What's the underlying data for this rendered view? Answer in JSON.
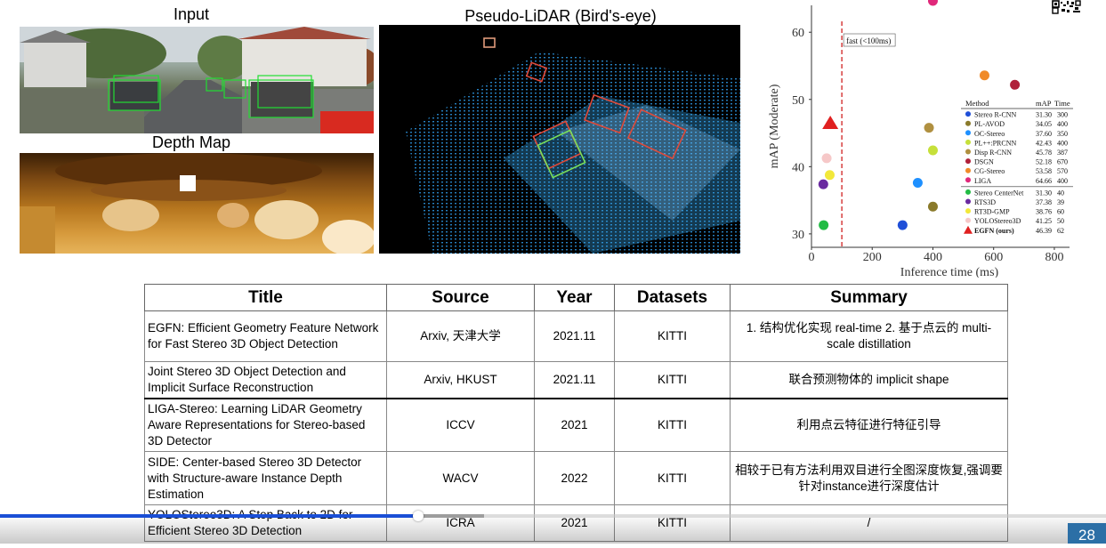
{
  "figure": {
    "input_label": "Input",
    "depth_label": "Depth Map",
    "lidar_label": "Pseudo-LiDAR (Bird's-eye)"
  },
  "chart_data": {
    "type": "scatter",
    "xlabel": "Inference time (ms)",
    "ylabel": "mAP (Moderate)",
    "xlim": [
      0,
      850
    ],
    "ylim": [
      28,
      64
    ],
    "xticks": [
      "0",
      "200",
      "400",
      "600",
      "800"
    ],
    "yticks": [
      "30",
      "40",
      "50",
      "60"
    ],
    "threshold": {
      "x": 100,
      "label": "fast (<100ms)"
    },
    "legend_headers": [
      "Method",
      "mAP",
      "Time"
    ],
    "series": [
      {
        "name": "Stereo R-CNN",
        "map": 31.3,
        "time": 300,
        "map_label": "31.30",
        "time_label": "300",
        "color": "#1f4fd8",
        "marker": "circle"
      },
      {
        "name": "PL-AVOD",
        "map": 34.05,
        "time": 400,
        "map_label": "34.05",
        "time_label": "400",
        "color": "#8a7a2a",
        "marker": "circle"
      },
      {
        "name": "OC-Stereo",
        "map": 37.6,
        "time": 350,
        "map_label": "37.60",
        "time_label": "350",
        "color": "#1e90ff",
        "marker": "circle"
      },
      {
        "name": "PL++:PRCNN",
        "map": 42.43,
        "time": 400,
        "map_label": "42.43",
        "time_label": "400",
        "color": "#c6e03a",
        "marker": "circle"
      },
      {
        "name": "Disp R-CNN",
        "map": 45.78,
        "time": 387,
        "map_label": "45.78",
        "time_label": "387",
        "color": "#b09040",
        "marker": "circle"
      },
      {
        "name": "DSGN",
        "map": 52.18,
        "time": 670,
        "map_label": "52.18",
        "time_label": "670",
        "color": "#b0203a",
        "marker": "circle"
      },
      {
        "name": "CG-Stereo",
        "map": 53.58,
        "time": 570,
        "map_label": "53.58",
        "time_label": "570",
        "color": "#f08a28",
        "marker": "circle"
      },
      {
        "name": "LIGA",
        "map": 64.66,
        "time": 400,
        "map_label": "64.66",
        "time_label": "400",
        "color": "#e0287a",
        "marker": "circle"
      },
      {
        "name": "Stereo CenterNet",
        "map": 31.3,
        "time": 40,
        "map_label": "31.30",
        "time_label": "40",
        "color": "#22bb44",
        "marker": "circle"
      },
      {
        "name": "RTS3D",
        "map": 37.38,
        "time": 39,
        "map_label": "37.38",
        "time_label": "39",
        "color": "#6a2aa0",
        "marker": "circle"
      },
      {
        "name": "RT3D-GMP",
        "map": 38.76,
        "time": 60,
        "map_label": "38.76",
        "time_label": "60",
        "color": "#f2e83a",
        "marker": "circle"
      },
      {
        "name": "YOLOStereo3D",
        "map": 41.25,
        "time": 50,
        "map_label": "41.25",
        "time_label": "50",
        "color": "#f6c8c8",
        "marker": "circle"
      },
      {
        "name": "EGFN (ours)",
        "map": 46.39,
        "time": 62,
        "map_label": "46.39",
        "time_label": "62",
        "color": "#e02020",
        "marker": "triangle"
      }
    ]
  },
  "table": {
    "headers": [
      "Title",
      "Source",
      "Year",
      "Datasets",
      "Summary"
    ],
    "rows": [
      {
        "title": "EGFN: Efficient Geometry Feature Network for Fast Stereo 3D Object Detection",
        "source": "Arxiv, 天津大学",
        "year": "2021.11",
        "datasets": "KITTI",
        "summary": "1. 结构优化实现 real-time 2. 基于点云的 multi-scale distillation"
      },
      {
        "title": "Joint Stereo 3D Object Detection and Implicit Surface Reconstruction",
        "source": "Arxiv, HKUST",
        "year": "2021.11",
        "datasets": "KITTI",
        "summary": "联合预测物体的 implicit shape"
      },
      {
        "title": "LIGA-Stereo: Learning LiDAR Geometry Aware Representations for Stereo-based 3D Detector",
        "source": "ICCV",
        "year": "2021",
        "datasets": "KITTI",
        "summary": "利用点云特征进行特征引导"
      },
      {
        "title": "SIDE: Center-based Stereo 3D Detector with Structure-aware Instance Depth Estimation",
        "source": "WACV",
        "year": "2022",
        "datasets": "KITTI",
        "summary": "相较于已有方法利用双目进行全图深度恢复,强调要针对instance进行深度估计"
      },
      {
        "title": "YOLOStereo3D: A Step Back to 2D for Efficient Stereo 3D Detection",
        "source": "ICRA",
        "year": "2021",
        "datasets": "KITTI",
        "summary": "/"
      }
    ]
  },
  "player": {
    "page_number": "28",
    "played_fraction": 0.378,
    "buffered_fraction": 0.438,
    "accent_color": "#1a4fd6",
    "icons": [
      "qr-code-icon"
    ]
  }
}
